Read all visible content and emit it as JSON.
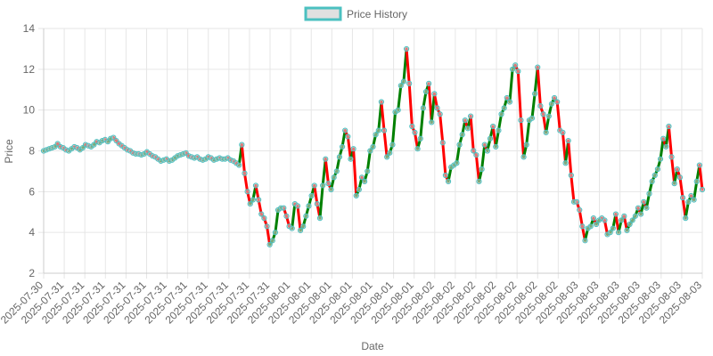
{
  "chart_data": {
    "type": "line",
    "title": "",
    "xlabel": "Date",
    "ylabel": "Price",
    "ylim": [
      2,
      14
    ],
    "y_ticks": [
      2,
      4,
      6,
      8,
      10,
      12,
      14
    ],
    "x_tick_labels": [
      "2025-07-30",
      "2025-07-31",
      "2025-07-31",
      "2025-07-31",
      "2025-07-31",
      "2025-07-31",
      "2025-07-31",
      "2025-07-31",
      "2025-07-31",
      "2025-07-31",
      "2025-07-31",
      "2025-07-31",
      "2025-08-01",
      "2025-08-01",
      "2025-08-01",
      "2025-08-01",
      "2025-08-01",
      "2025-08-01",
      "2025-08-01",
      "2025-08-02",
      "2025-08-02",
      "2025-08-02",
      "2025-08-02",
      "2025-08-02",
      "2025-08-02",
      "2025-08-02",
      "2025-08-03",
      "2025-08-03",
      "2025-08-03",
      "2025-08-03",
      "2025-08-03",
      "2025-08-03",
      "2025-08-03"
    ],
    "grid": true,
    "legend": "top-center",
    "up_color": "#008000",
    "down_color": "#ff0000",
    "marker_color": "#4bc0c0",
    "series": [
      {
        "name": "Price History",
        "values": [
          8.0,
          8.05,
          8.1,
          8.15,
          8.2,
          8.35,
          8.2,
          8.15,
          8.05,
          8.0,
          8.1,
          8.2,
          8.15,
          8.05,
          8.15,
          8.3,
          8.25,
          8.2,
          8.3,
          8.45,
          8.4,
          8.5,
          8.55,
          8.45,
          8.6,
          8.65,
          8.5,
          8.35,
          8.25,
          8.15,
          8.05,
          8.0,
          7.9,
          7.85,
          7.85,
          7.8,
          7.85,
          7.95,
          7.85,
          7.75,
          7.7,
          7.6,
          7.5,
          7.55,
          7.6,
          7.5,
          7.55,
          7.65,
          7.75,
          7.8,
          7.85,
          7.9,
          7.75,
          7.7,
          7.65,
          7.7,
          7.6,
          7.55,
          7.6,
          7.7,
          7.65,
          7.55,
          7.6,
          7.65,
          7.6,
          7.6,
          7.65,
          7.55,
          7.5,
          7.4,
          7.3,
          8.3,
          6.9,
          6.0,
          5.4,
          5.6,
          6.3,
          5.6,
          4.9,
          4.7,
          4.3,
          3.4,
          3.6,
          4.0,
          5.1,
          5.2,
          5.2,
          4.8,
          4.3,
          4.2,
          5.4,
          5.3,
          4.1,
          4.3,
          4.8,
          5.3,
          5.8,
          6.3,
          5.4,
          4.7,
          6.3,
          7.6,
          6.4,
          6.1,
          6.7,
          7.0,
          7.7,
          8.2,
          9.0,
          8.7,
          7.6,
          8.1,
          5.8,
          6.1,
          6.7,
          6.5,
          7.0,
          8.0,
          8.2,
          8.8,
          9.0,
          10.4,
          9.0,
          7.7,
          7.9,
          8.3,
          9.9,
          10.0,
          11.2,
          11.4,
          13.0,
          11.3,
          9.2,
          8.9,
          8.1,
          8.6,
          10.1,
          10.9,
          11.3,
          9.4,
          10.8,
          10.1,
          9.8,
          8.4,
          6.8,
          6.5,
          7.2,
          7.3,
          7.4,
          8.3,
          8.8,
          9.5,
          9.1,
          9.7,
          8.0,
          7.8,
          6.5,
          7.1,
          8.3,
          8.0,
          8.6,
          9.2,
          8.2,
          9.0,
          9.8,
          10.1,
          10.6,
          10.4,
          12.0,
          12.2,
          11.9,
          9.5,
          7.7,
          8.3,
          9.5,
          9.6,
          10.8,
          12.1,
          10.2,
          9.8,
          8.9,
          9.7,
          10.3,
          10.6,
          10.4,
          9.0,
          8.9,
          7.4,
          8.5,
          6.8,
          5.5,
          5.5,
          5.1,
          4.3,
          3.6,
          4.2,
          4.3,
          4.7,
          4.4,
          4.6,
          4.7,
          4.6,
          3.9,
          4.0,
          4.2,
          4.9,
          4.0,
          4.6,
          4.8,
          4.1,
          4.4,
          4.6,
          4.8,
          5.2,
          4.9,
          5.5,
          5.2,
          5.9,
          6.5,
          6.8,
          7.1,
          7.6,
          8.6,
          8.2,
          9.2,
          7.7,
          6.4,
          7.1,
          6.7,
          5.7,
          4.7,
          5.5,
          5.8,
          5.6,
          6.5,
          7.3,
          6.1
        ]
      }
    ]
  }
}
